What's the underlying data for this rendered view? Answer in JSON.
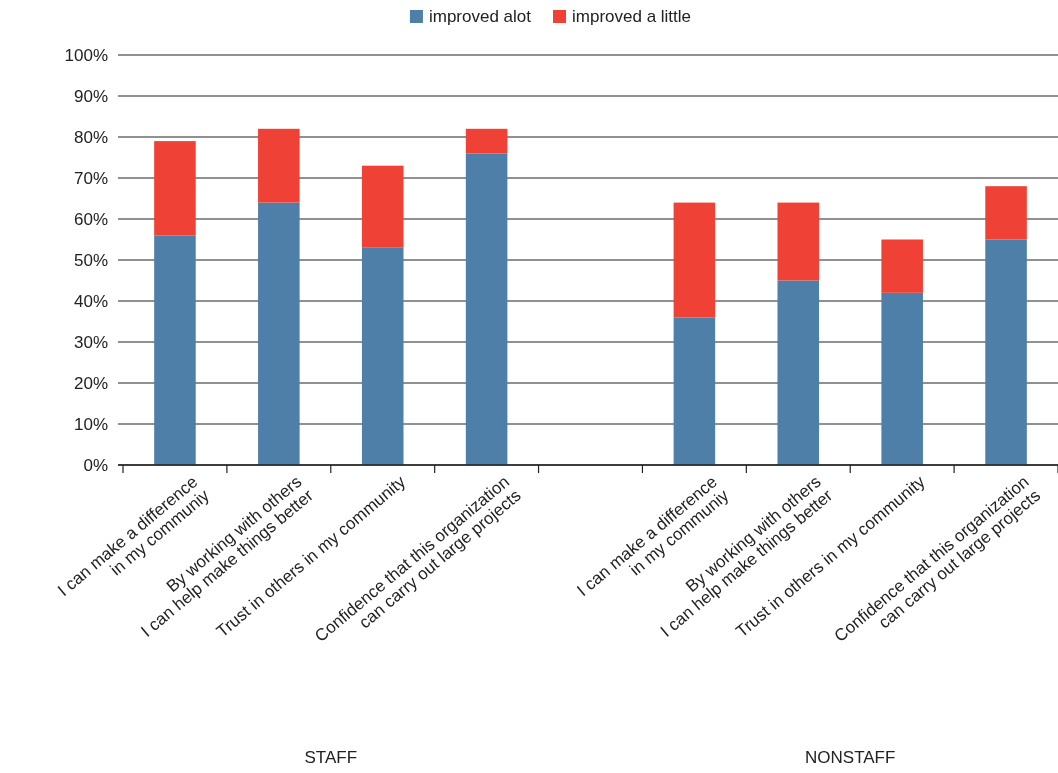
{
  "chart_data": {
    "type": "bar",
    "stacked": true,
    "categories": [
      "I can make a difference\nin my communiy",
      "By working with others\nI can help make things better",
      "Trust in others in my community",
      "Confidence that this organization\ncan carry out large projects",
      null,
      "I can make a difference\nin my communiy",
      "By working with others\nI can help make things better",
      "Trust in others in my community",
      "Confidence that this organization\ncan carry out large projects"
    ],
    "series": [
      {
        "name": "improved alot",
        "color": "#4e7fa8",
        "values": [
          56,
          64,
          53,
          76,
          null,
          36,
          45,
          42,
          55
        ]
      },
      {
        "name": "improved a little",
        "color": "#ef4136",
        "values": [
          23,
          18,
          20,
          6,
          null,
          28,
          19,
          13,
          13
        ]
      }
    ],
    "ylim": [
      0,
      100
    ],
    "yticks": [
      {
        "value": 0,
        "label": "0%"
      },
      {
        "value": 10,
        "label": "10%"
      },
      {
        "value": 20,
        "label": "20%"
      },
      {
        "value": 30,
        "label": "30%"
      },
      {
        "value": 40,
        "label": "40%"
      },
      {
        "value": 50,
        "label": "50%"
      },
      {
        "value": 60,
        "label": "60%"
      },
      {
        "value": 70,
        "label": "70%"
      },
      {
        "value": 80,
        "label": "80%"
      },
      {
        "value": 90,
        "label": "90%"
      },
      {
        "value": 100,
        "label": "100%"
      }
    ],
    "grid": "y",
    "legend": "top",
    "annotations": [
      "STAFF",
      "NONSTAFF"
    ]
  }
}
